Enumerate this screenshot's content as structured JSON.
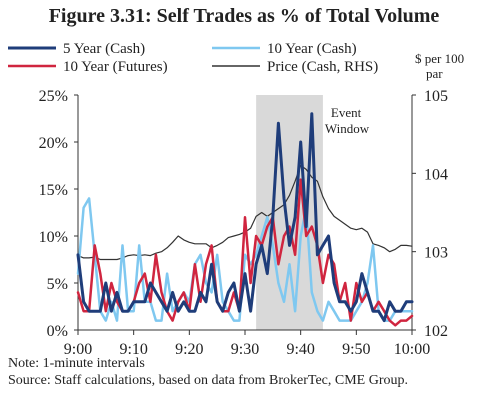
{
  "title": "Figure 3.31: Self Trades as % of Total Volume",
  "notes": {
    "note": "Note: 1-minute intervals",
    "source": "Source: Staff calculations, based on data from BrokerTec, CME Group."
  },
  "chart_data": {
    "type": "line",
    "x_ticks": [
      "9:00",
      "9:10",
      "9:20",
      "9:30",
      "9:40",
      "9:50",
      "10:00"
    ],
    "x_range_minutes": [
      0,
      60
    ],
    "y_left": {
      "ticks": [
        "0%",
        "5%",
        "10%",
        "15%",
        "20%",
        "25%"
      ],
      "range": [
        0,
        25
      ],
      "unit": "%"
    },
    "y_right": {
      "label_line1": "$ per 100",
      "label_line2": "par",
      "ticks": [
        "102",
        "103",
        "104",
        "105"
      ],
      "range": [
        102,
        105
      ]
    },
    "shaded_region": {
      "label_line1": "Event",
      "label_line2": "Window",
      "start_minute": 32,
      "end_minute": 44,
      "color": "#d9d9d9"
    },
    "legend_placement": "top",
    "series": [
      {
        "name": "5 Year (Cash)",
        "axis": "left",
        "color": "#1f3d7a",
        "stroke": 3,
        "values": [
          8,
          3,
          2,
          2,
          2,
          5,
          2,
          4,
          2,
          2,
          3,
          3,
          3,
          5,
          4,
          3,
          2,
          4,
          2,
          3,
          2,
          2,
          4,
          3,
          7,
          3,
          2,
          4,
          5,
          2,
          6,
          2,
          7,
          9,
          6,
          12,
          22,
          14,
          9,
          12,
          20,
          11,
          23,
          8,
          9,
          10,
          5,
          3,
          3,
          2,
          3,
          6,
          4,
          2,
          2,
          1,
          3,
          2,
          2,
          3,
          3
        ]
      },
      {
        "name": "10 Year (Cash)",
        "axis": "left",
        "color": "#7fc8f0",
        "stroke": 2.5,
        "values": [
          6,
          13,
          14,
          8,
          2,
          1,
          3,
          1,
          9,
          2,
          2,
          9,
          3,
          3,
          1,
          1,
          6,
          2,
          3,
          4,
          3,
          7,
          8,
          5,
          4,
          8,
          3,
          2,
          1,
          1,
          8,
          7,
          8,
          10,
          12,
          9,
          5,
          3,
          7,
          2,
          10,
          13,
          4,
          2,
          1,
          3,
          2,
          1,
          1,
          1,
          2,
          3,
          5,
          9,
          2,
          1,
          1,
          2,
          2,
          2,
          2
        ]
      },
      {
        "name": "10 Year (Futures)",
        "axis": "left",
        "color": "#d0253f",
        "stroke": 2.5,
        "values": [
          4,
          2,
          2,
          9,
          6,
          2,
          5,
          3,
          2,
          2,
          3,
          5,
          6,
          3,
          8,
          4,
          2,
          1,
          3,
          4,
          2,
          7,
          3,
          7,
          9,
          3,
          2,
          2,
          4,
          2,
          12,
          5,
          10,
          9,
          11,
          12,
          7,
          10,
          11,
          8,
          16,
          10,
          11,
          9,
          5,
          8,
          7,
          3,
          5,
          1,
          5,
          3,
          4,
          2,
          3,
          2,
          1,
          0.5,
          1,
          1,
          1.5
        ]
      },
      {
        "name": "Price (Cash, RHS)",
        "axis": "right",
        "color": "#333333",
        "stroke": 1.2,
        "values": [
          102.95,
          102.92,
          102.92,
          102.93,
          102.9,
          102.9,
          102.9,
          102.9,
          102.92,
          102.95,
          102.96,
          102.95,
          102.96,
          102.95,
          102.98,
          103.0,
          103.05,
          103.12,
          103.2,
          103.15,
          103.12,
          103.1,
          103.1,
          103.1,
          103.05,
          103.08,
          103.12,
          103.18,
          103.2,
          103.22,
          103.25,
          103.3,
          103.45,
          103.5,
          103.45,
          103.5,
          103.55,
          103.6,
          103.72,
          103.9,
          104.1,
          104.05,
          103.95,
          103.9,
          103.7,
          103.55,
          103.45,
          103.4,
          103.35,
          103.3,
          103.28,
          103.3,
          103.25,
          103.1,
          103.08,
          103.05,
          103.0,
          103.03,
          103.08,
          103.08,
          103.07
        ]
      }
    ]
  }
}
